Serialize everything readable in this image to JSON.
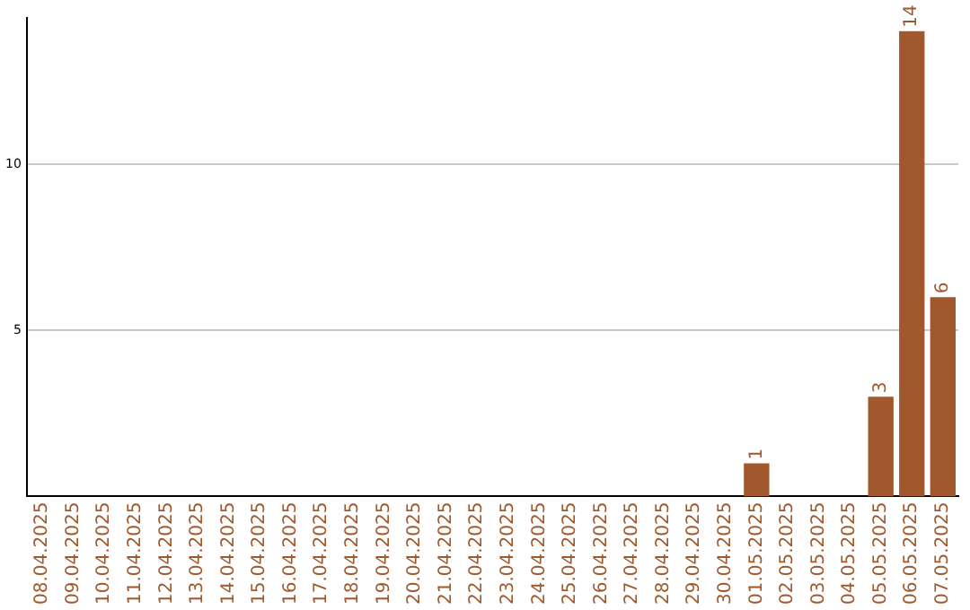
{
  "chart_data": {
    "type": "bar",
    "categories": [
      "08.04.2025",
      "09.04.2025",
      "10.04.2025",
      "11.04.2025",
      "12.04.2025",
      "13.04.2025",
      "14.04.2025",
      "15.04.2025",
      "16.04.2025",
      "17.04.2025",
      "18.04.2025",
      "19.04.2025",
      "20.04.2025",
      "21.04.2025",
      "22.04.2025",
      "23.04.2025",
      "24.04.2025",
      "25.04.2025",
      "26.04.2025",
      "27.04.2025",
      "28.04.2025",
      "29.04.2025",
      "30.04.2025",
      "01.05.2025",
      "02.05.2025",
      "03.05.2025",
      "04.05.2025",
      "05.05.2025",
      "06.05.2025",
      "07.05.2025"
    ],
    "values": [
      0,
      0,
      0,
      0,
      0,
      0,
      0,
      0,
      0,
      0,
      0,
      0,
      0,
      0,
      0,
      0,
      0,
      0,
      0,
      0,
      0,
      0,
      0,
      1,
      0,
      0,
      0,
      3,
      14,
      6
    ],
    "value_labels": [
      null,
      null,
      null,
      null,
      null,
      null,
      null,
      null,
      null,
      null,
      null,
      null,
      null,
      null,
      null,
      null,
      null,
      null,
      null,
      null,
      null,
      null,
      null,
      "1",
      null,
      null,
      null,
      "3",
      "14",
      "6"
    ],
    "color": "#a0582c",
    "ylim": [
      0,
      14.4
    ],
    "yticks": [
      5,
      10
    ],
    "grid": "y",
    "legend": false
  }
}
